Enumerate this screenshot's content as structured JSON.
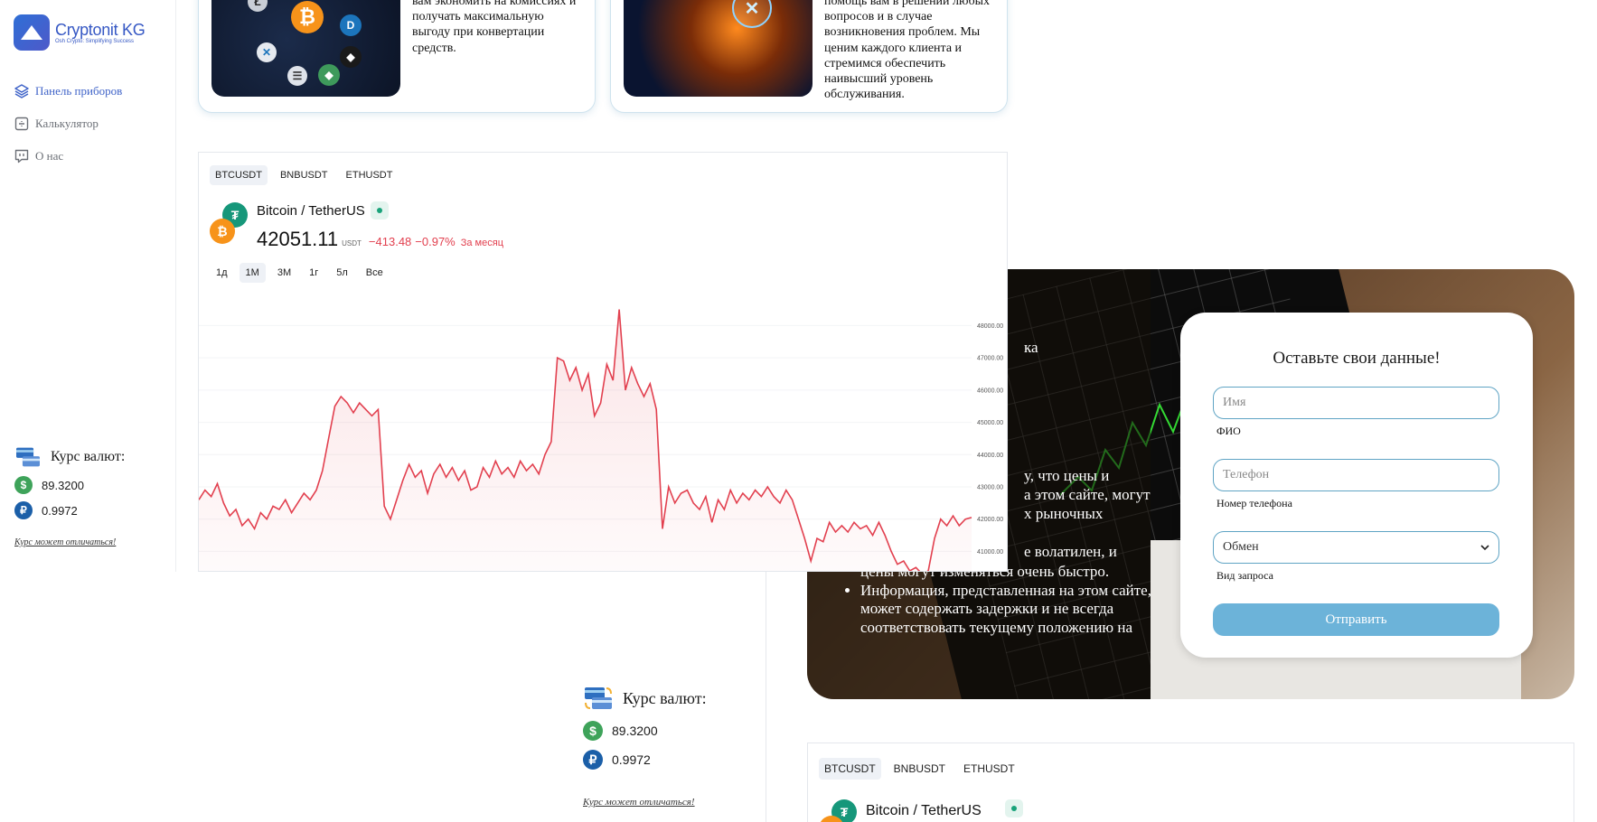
{
  "app": {
    "logo_name": "Cryptonit KG",
    "logo_tagline": "Osh Crypto: Simplifying Success"
  },
  "sidebar": {
    "items": [
      {
        "label": "Панель приборов",
        "icon": "layers-icon",
        "active": true
      },
      {
        "label": "Калькулятор",
        "icon": "calculator-icon",
        "active": false
      },
      {
        "label": "О нас",
        "icon": "chat-icon",
        "active": false
      }
    ]
  },
  "rates": {
    "title": "Курс валют:",
    "usd": "89.3200",
    "rub": "0.9972",
    "disclaimer": "Курс может отличаться!"
  },
  "features": [
    {
      "text": "вам экономить на комиссиях и получать максимальную выгоду при конвертации средств.",
      "image": "crypto-coins-image"
    },
    {
      "text": "помощь вам в решении любых вопросов и в случае возникновения проблем. Мы ценим каждого клиента и стремимся обеспечить наивысший уровень обслуживания.",
      "image": "tech-hand-image"
    }
  ],
  "widget": {
    "tabs": [
      "BTCUSDT",
      "BNBUSDT",
      "ETHUSDT"
    ],
    "active_tab": 0,
    "pair_name": "Bitcoin / TetherUS",
    "price": "42051.11",
    "price_currency": "USDT",
    "change_abs": "−413.48",
    "change_pct": "−0.97%",
    "change_period": "За месяц",
    "ranges": [
      "1д",
      "1M",
      "3M",
      "1г",
      "5л",
      "Все"
    ],
    "active_range": 1
  },
  "chart_data": {
    "type": "area",
    "title": "",
    "xlabel": "",
    "ylabel": "",
    "y_ticks": [
      48000,
      47000,
      46000,
      45000,
      44000,
      43000,
      42000,
      41000
    ],
    "y_tick_labels": [
      "48000.00",
      "47000.00",
      "46000.00",
      "45000.00",
      "44000.00",
      "43000.00",
      "42000.00",
      "41000.00"
    ],
    "ylim": [
      40200,
      48600
    ],
    "values": [
      42600,
      42900,
      42700,
      43100,
      42500,
      42100,
      42300,
      41800,
      42000,
      41700,
      42200,
      42000,
      42400,
      42300,
      42600,
      42200,
      42500,
      42800,
      42600,
      42900,
      43500,
      44500,
      45500,
      45800,
      45600,
      45300,
      45600,
      45400,
      45200,
      45400,
      42400,
      42000,
      42600,
      43200,
      43700,
      43300,
      43500,
      42800,
      43400,
      43700,
      43300,
      43600,
      43200,
      43500,
      42900,
      43000,
      43600,
      43300,
      43800,
      43400,
      43600,
      43300,
      43800,
      43500,
      43700,
      43400,
      44000,
      44400,
      47000,
      46900,
      46300,
      46700,
      46000,
      46500,
      45200,
      45600,
      46800,
      46300,
      48500,
      46000,
      46700,
      46200,
      45800,
      46200,
      45400,
      41700,
      43000,
      42500,
      42800,
      42900,
      42500,
      42300,
      42700,
      41900,
      42600,
      42300,
      42900,
      42500,
      42800,
      42600,
      42900,
      42700,
      43000,
      42700,
      42500,
      42900,
      42600,
      42000,
      41400,
      40700,
      41400,
      41300,
      41900,
      41600,
      41800,
      41600,
      41900,
      41700,
      41800,
      41500,
      41900,
      41500,
      41000,
      40600,
      40700,
      40400,
      40500,
      40300,
      40400,
      41400,
      42000,
      41800,
      42100,
      41800,
      42000,
      42050
    ]
  },
  "bg_info": {
    "frag1": "ка",
    "frag2": "у, что цены и",
    "frag3": "а этом сайте, могут",
    "frag4": "х рыночных",
    "frag5": "е волатилен, и",
    "item_b": "цены могут изменяться очень быстро.",
    "item_c": "Информация, представленная на этом сайте, может содержать задержки и не всегда соответствовать текущему положению на"
  },
  "form": {
    "title": "Оставьте свои данные!",
    "name_placeholder": "Имя",
    "name_label": "ФИО",
    "phone_placeholder": "Телефон",
    "phone_label": "Номер телефона",
    "request_value": "Обмен",
    "request_label": "Вид запроса",
    "submit_label": "Отправить"
  },
  "colors": {
    "brand": "#3658c4",
    "chart_line": "#e2404f",
    "button": "#6cb3d9",
    "input_border": "#5fa4c4"
  }
}
